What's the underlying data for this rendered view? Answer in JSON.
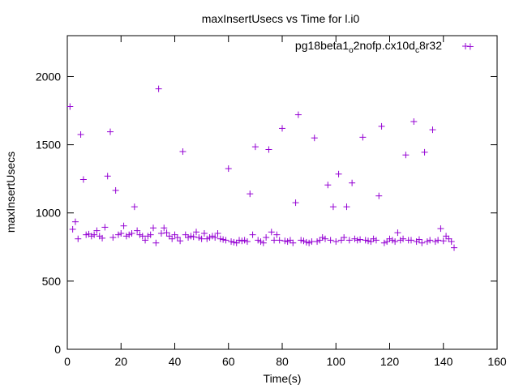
{
  "chart_data": {
    "type": "scatter",
    "title": "maxInsertUsecs vs Time for l.i0",
    "xlabel": "Time(s)",
    "ylabel": "maxInsertUsecs",
    "xlim": [
      0,
      160
    ],
    "ylim": [
      0,
      2300
    ],
    "xticks": [
      "0",
      "20",
      "40",
      "60",
      "80",
      "100",
      "120",
      "140",
      "160"
    ],
    "yticks": [
      "0",
      "500",
      "1000",
      "1500",
      "2000"
    ],
    "grid": false,
    "legend": {
      "placement": "top-right",
      "parts": [
        "pg18beta1",
        "o",
        "2nofp.cx10d",
        "c",
        "8r32"
      ]
    },
    "color": "#9400d3",
    "series": [
      {
        "name": "pg18beta1_o2nofp.cx10d_c8r32",
        "points": [
          [
            1,
            1780
          ],
          [
            2,
            880
          ],
          [
            3,
            935
          ],
          [
            4,
            810
          ],
          [
            5,
            1575
          ],
          [
            6,
            1245
          ],
          [
            7,
            840
          ],
          [
            8,
            845
          ],
          [
            9,
            830
          ],
          [
            10,
            840
          ],
          [
            11,
            870
          ],
          [
            12,
            830
          ],
          [
            13,
            815
          ],
          [
            14,
            895
          ],
          [
            15,
            1270
          ],
          [
            16,
            1595
          ],
          [
            17,
            820
          ],
          [
            18,
            1165
          ],
          [
            19,
            840
          ],
          [
            20,
            850
          ],
          [
            21,
            905
          ],
          [
            22,
            830
          ],
          [
            23,
            840
          ],
          [
            24,
            850
          ],
          [
            25,
            1045
          ],
          [
            26,
            870
          ],
          [
            27,
            840
          ],
          [
            28,
            830
          ],
          [
            29,
            800
          ],
          [
            30,
            830
          ],
          [
            31,
            840
          ],
          [
            32,
            890
          ],
          [
            33,
            780
          ],
          [
            34,
            1910
          ],
          [
            35,
            850
          ],
          [
            36,
            890
          ],
          [
            37,
            855
          ],
          [
            38,
            830
          ],
          [
            39,
            810
          ],
          [
            40,
            840
          ],
          [
            41,
            820
          ],
          [
            42,
            795
          ],
          [
            43,
            1450
          ],
          [
            44,
            840
          ],
          [
            45,
            820
          ],
          [
            46,
            830
          ],
          [
            47,
            825
          ],
          [
            48,
            860
          ],
          [
            49,
            820
          ],
          [
            50,
            810
          ],
          [
            51,
            850
          ],
          [
            52,
            810
          ],
          [
            53,
            820
          ],
          [
            54,
            830
          ],
          [
            55,
            820
          ],
          [
            56,
            850
          ],
          [
            57,
            810
          ],
          [
            58,
            805
          ],
          [
            59,
            800
          ],
          [
            60,
            1325
          ],
          [
            61,
            790
          ],
          [
            62,
            785
          ],
          [
            63,
            780
          ],
          [
            64,
            800
          ],
          [
            65,
            795
          ],
          [
            66,
            800
          ],
          [
            67,
            790
          ],
          [
            68,
            1140
          ],
          [
            69,
            840
          ],
          [
            70,
            1485
          ],
          [
            71,
            800
          ],
          [
            72,
            790
          ],
          [
            73,
            780
          ],
          [
            74,
            820
          ],
          [
            75,
            1465
          ],
          [
            76,
            860
          ],
          [
            77,
            800
          ],
          [
            78,
            840
          ],
          [
            79,
            800
          ],
          [
            80,
            1620
          ],
          [
            81,
            795
          ],
          [
            82,
            790
          ],
          [
            83,
            800
          ],
          [
            84,
            780
          ],
          [
            85,
            1075
          ],
          [
            86,
            1720
          ],
          [
            87,
            800
          ],
          [
            88,
            795
          ],
          [
            89,
            785
          ],
          [
            90,
            780
          ],
          [
            91,
            790
          ],
          [
            92,
            1550
          ],
          [
            93,
            790
          ],
          [
            94,
            800
          ],
          [
            95,
            820
          ],
          [
            96,
            810
          ],
          [
            97,
            1205
          ],
          [
            98,
            800
          ],
          [
            99,
            1045
          ],
          [
            100,
            790
          ],
          [
            101,
            1285
          ],
          [
            102,
            800
          ],
          [
            103,
            820
          ],
          [
            104,
            1045
          ],
          [
            105,
            800
          ],
          [
            106,
            1220
          ],
          [
            107,
            810
          ],
          [
            108,
            800
          ],
          [
            109,
            805
          ],
          [
            110,
            1555
          ],
          [
            111,
            800
          ],
          [
            112,
            795
          ],
          [
            113,
            790
          ],
          [
            114,
            810
          ],
          [
            115,
            800
          ],
          [
            116,
            1125
          ],
          [
            117,
            1635
          ],
          [
            118,
            780
          ],
          [
            119,
            790
          ],
          [
            120,
            810
          ],
          [
            121,
            800
          ],
          [
            122,
            790
          ],
          [
            123,
            855
          ],
          [
            124,
            800
          ],
          [
            125,
            810
          ],
          [
            126,
            1425
          ],
          [
            127,
            800
          ],
          [
            128,
            800
          ],
          [
            129,
            1670
          ],
          [
            130,
            790
          ],
          [
            131,
            805
          ],
          [
            132,
            780
          ],
          [
            133,
            1445
          ],
          [
            134,
            790
          ],
          [
            135,
            800
          ],
          [
            136,
            1610
          ],
          [
            137,
            790
          ],
          [
            138,
            800
          ],
          [
            139,
            885
          ],
          [
            140,
            795
          ],
          [
            141,
            830
          ],
          [
            142,
            810
          ],
          [
            143,
            790
          ],
          [
            144,
            745
          ],
          [
            150,
            2220
          ]
        ]
      }
    ]
  }
}
